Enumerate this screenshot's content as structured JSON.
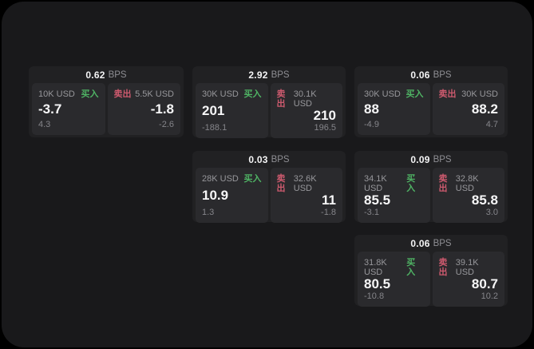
{
  "window": {
    "outer_background": "#000000",
    "panel_background": "#19191b"
  },
  "labels": {
    "bps_unit": "BPS",
    "buy": "买入",
    "sell": "卖出"
  },
  "colors": {
    "buy_green": "#4fb364",
    "sell_red": "#cd5a6e",
    "card_background": "#212123",
    "tile_background": "#2a2a2d",
    "muted_text": "#97979b",
    "value_text": "#f7f7f8"
  },
  "cards": [
    {
      "bps": "0.62",
      "buy": {
        "amount": "10K USD",
        "value": "-3.7",
        "sub": "4.3"
      },
      "sell": {
        "amount": "5.5K USD",
        "value": "-1.8",
        "sub": "-2.6"
      }
    },
    {
      "bps": "2.92",
      "buy": {
        "amount": "30K USD",
        "value": "201",
        "sub": "-188.1"
      },
      "sell": {
        "amount": "30.1K USD",
        "value": "210",
        "sub": "196.5"
      }
    },
    {
      "bps": "0.06",
      "buy": {
        "amount": "30K USD",
        "value": "88",
        "sub": "-4.9"
      },
      "sell": {
        "amount": "30K USD",
        "value": "88.2",
        "sub": "4.7"
      }
    },
    {
      "bps": "0.03",
      "buy": {
        "amount": "28K USD",
        "value": "10.9",
        "sub": "1.3"
      },
      "sell": {
        "amount": "32.6K USD",
        "value": "11",
        "sub": "-1.8"
      }
    },
    {
      "bps": "0.09",
      "buy": {
        "amount": "34.1K USD",
        "value": "85.5",
        "sub": "-3.1"
      },
      "sell": {
        "amount": "32.8K USD",
        "value": "85.8",
        "sub": "3.0"
      }
    },
    {
      "bps": "0.06",
      "buy": {
        "amount": "31.8K USD",
        "value": "80.5",
        "sub": "-10.8"
      },
      "sell": {
        "amount": "39.1K USD",
        "value": "80.7",
        "sub": "10.2"
      }
    }
  ]
}
